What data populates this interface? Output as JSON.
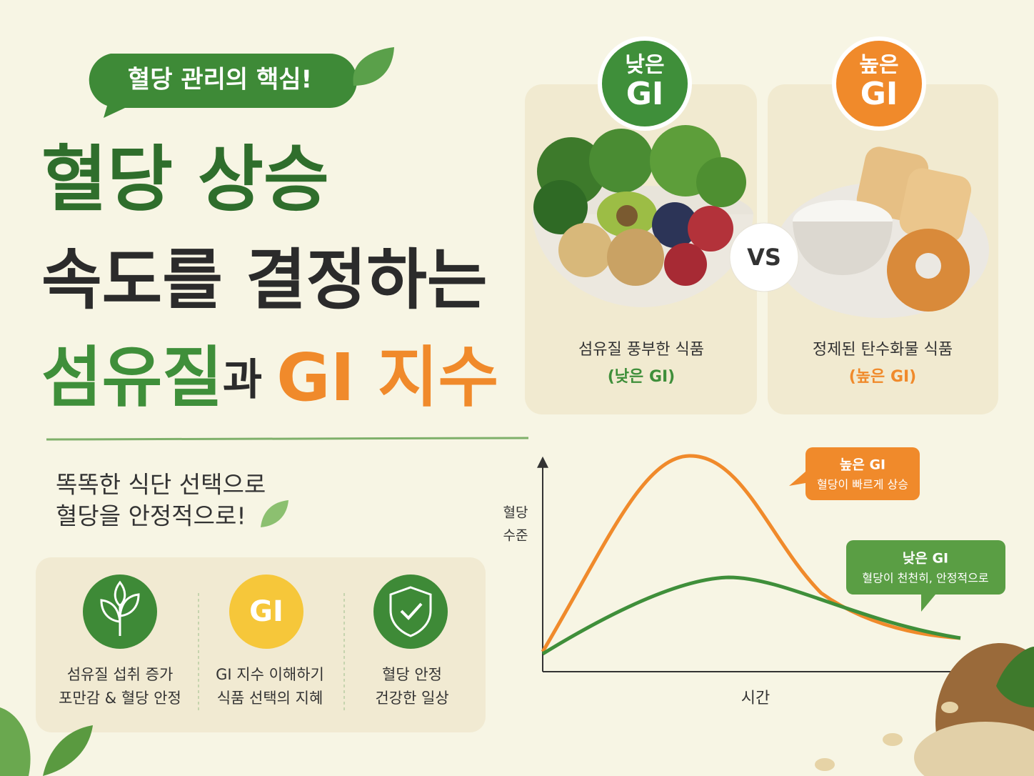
{
  "badge": "혈당 관리의 핵심!",
  "title": {
    "line1": "혈당 상승",
    "line2": "속도를 결정하는",
    "line3": {
      "fiber": "섬유질",
      "and": "과",
      "gi": "GI 지수"
    }
  },
  "subtitle": [
    "똑똑한 식단 선택으로",
    "혈당을 안정적으로!"
  ],
  "features": [
    {
      "lines": [
        "섬유질 섭취 증가",
        "포만감 & 혈당 안정"
      ]
    },
    {
      "icon_text": "GI",
      "lines": [
        "GI 지수 이해하기",
        "식품 선택의 지혜"
      ]
    },
    {
      "lines": [
        "혈당 안정",
        "건강한 일상"
      ]
    }
  ],
  "comparison": {
    "low": {
      "badge": [
        "낮은",
        "GI"
      ],
      "caption": "섬유질 풍부한 식품",
      "note": "(낮은 GI)"
    },
    "vs": "VS",
    "high": {
      "badge": [
        "높은",
        "GI"
      ],
      "caption": "정제된 탄수화물 식품",
      "note": "(높은 GI)"
    }
  },
  "graph": {
    "y_label": [
      "혈당",
      "수준"
    ],
    "x_label": "시간",
    "high_callout": {
      "title": "높은 GI",
      "text": "혈당이 빠르게 상승"
    },
    "low_callout": {
      "title": "낮은 GI",
      "text": "혈당이 천천히, 안정적으로"
    }
  }
}
